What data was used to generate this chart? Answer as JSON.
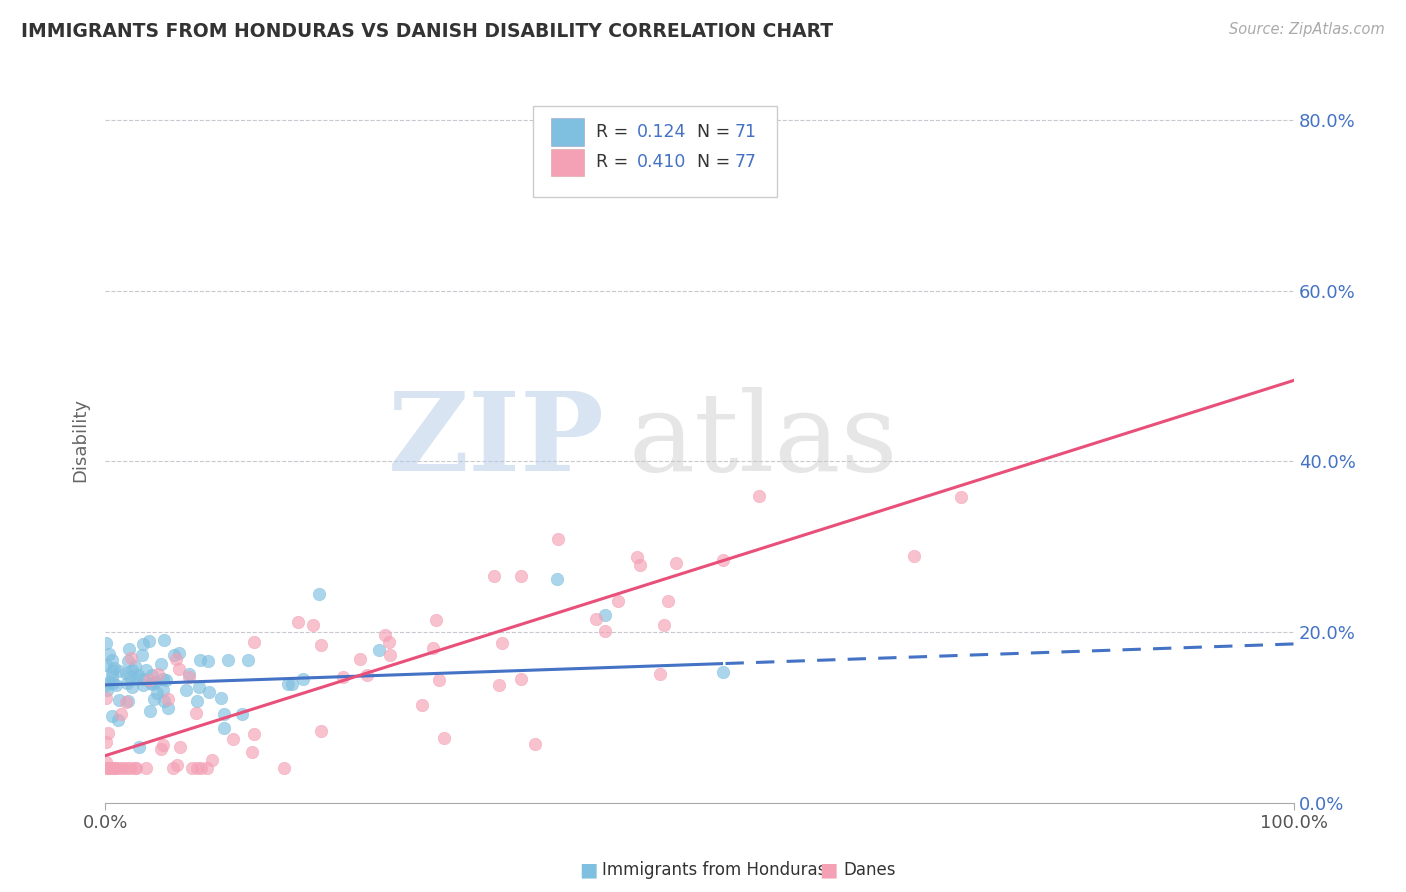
{
  "title": "IMMIGRANTS FROM HONDURAS VS DANISH DISABILITY CORRELATION CHART",
  "source": "Source: ZipAtlas.com",
  "ylabel": "Disability",
  "blue_color": "#7fbfdf",
  "pink_color": "#f4a0b5",
  "trend_blue": "#4472c4",
  "trend_pink": "#e8507a",
  "watermark_zip_color": "#c8d8ec",
  "watermark_atlas_color": "#d0d0d0",
  "background_color": "#ffffff",
  "grid_color": "#c8c8d0",
  "title_color": "#333333",
  "source_color": "#aaaaaa",
  "legend_r1": "R = 0.124",
  "legend_n1": "N = 71",
  "legend_r2": "R = 0.410",
  "legend_n2": "N = 77",
  "xlim": [
    0.0,
    1.0
  ],
  "ylim": [
    0.0,
    0.85
  ],
  "yticks": [
    0.0,
    0.2,
    0.4,
    0.6,
    0.8
  ],
  "ytick_labels": [
    "0.0%",
    "20.0%",
    "40.0%",
    "60.0%",
    "80.0%"
  ],
  "blue_trend_slope": 0.048,
  "blue_trend_intercept": 0.138,
  "blue_trend_split": 0.52,
  "pink_trend_slope": 0.44,
  "pink_trend_intercept": 0.055
}
